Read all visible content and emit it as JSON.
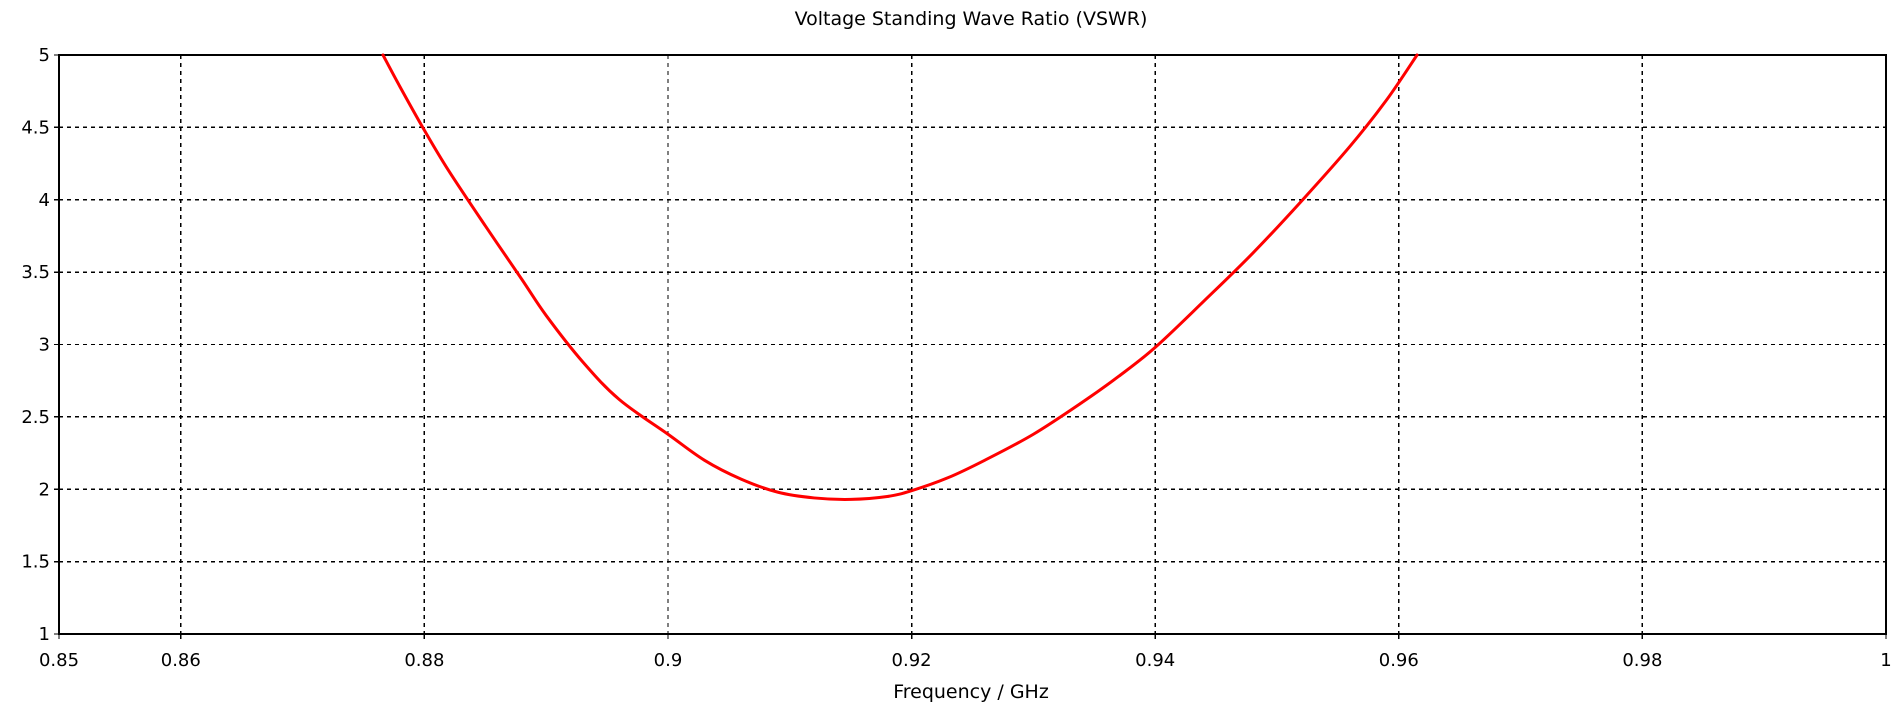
{
  "chart_data": {
    "type": "line",
    "title": "Voltage Standing Wave Ratio (VSWR)",
    "xlabel": "Frequency / GHz",
    "ylabel": "",
    "xlim": [
      0.85,
      1
    ],
    "ylim": [
      1,
      5
    ],
    "x_ticks": [
      0.85,
      0.86,
      0.88,
      0.9,
      0.92,
      0.94,
      0.96,
      0.98,
      1
    ],
    "x_tick_labels": [
      "0.85",
      "0.86",
      "0.88",
      "0.9",
      "0.92",
      "0.94",
      "0.96",
      "0.98",
      "1"
    ],
    "y_ticks": [
      1,
      1.5,
      2,
      2.5,
      3,
      3.5,
      4,
      4.5,
      5
    ],
    "y_tick_labels": [
      "1",
      "1.5",
      "2",
      "2.5",
      "3",
      "3.5",
      "4",
      "4.5",
      "5"
    ],
    "grid": true,
    "legend": "none",
    "series": [
      {
        "color": "#ff0000",
        "x": [
          0.8766,
          0.878,
          0.88,
          0.882,
          0.885,
          0.888,
          0.89,
          0.893,
          0.896,
          0.9,
          0.903,
          0.906,
          0.909,
          0.912,
          0.915,
          0.918,
          0.92,
          0.923,
          0.926,
          0.93,
          0.934,
          0.937,
          0.94,
          0.944,
          0.948,
          0.952,
          0.956,
          0.959,
          0.9615
        ],
        "y": [
          5.0,
          4.78,
          4.48,
          4.2,
          3.82,
          3.45,
          3.2,
          2.88,
          2.62,
          2.38,
          2.2,
          2.07,
          1.98,
          1.94,
          1.93,
          1.95,
          1.99,
          2.08,
          2.2,
          2.38,
          2.6,
          2.78,
          2.98,
          3.3,
          3.63,
          3.99,
          4.37,
          4.69,
          5.0
        ]
      }
    ]
  }
}
